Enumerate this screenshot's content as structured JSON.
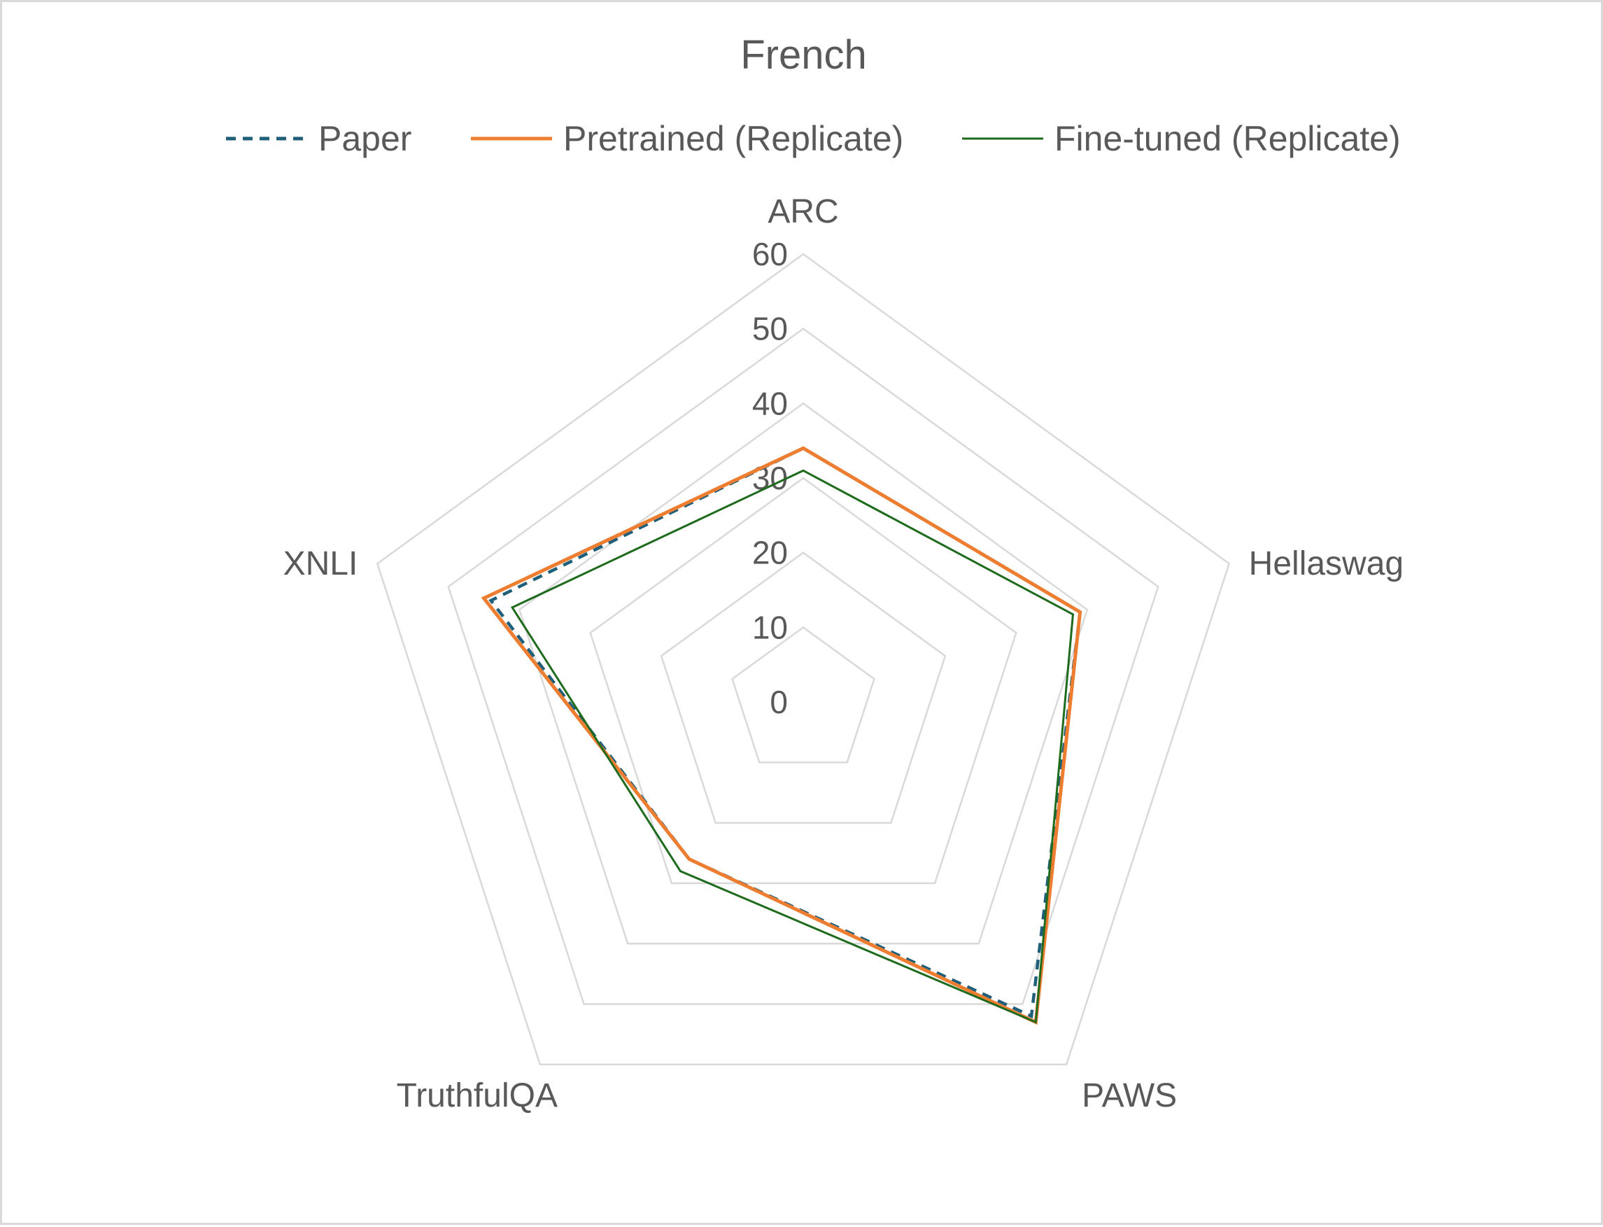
{
  "chart_data": {
    "type": "radar",
    "title": "French",
    "axes": [
      "ARC",
      "Hellaswag",
      "PAWS",
      "TruthfulQA",
      "XNLI"
    ],
    "radial_ticks": [
      "0",
      "10",
      "20",
      "30",
      "40",
      "50",
      "60"
    ],
    "rlim": [
      0,
      60
    ],
    "grid": true,
    "legend_position": "top",
    "series": [
      {
        "name": "Paper",
        "values": [
          34,
          39,
          52,
          26,
          44
        ],
        "color": "#1f5f7a",
        "style": "dashed"
      },
      {
        "name": "Pretrained (Replicate)",
        "values": [
          34,
          39,
          53,
          26,
          45
        ],
        "color": "#ed7d31",
        "style": "solid"
      },
      {
        "name": "Fine-tuned (Replicate)",
        "values": [
          31,
          38,
          53,
          28,
          41
        ],
        "color": "#1e6b1e",
        "style": "solid"
      }
    ]
  }
}
